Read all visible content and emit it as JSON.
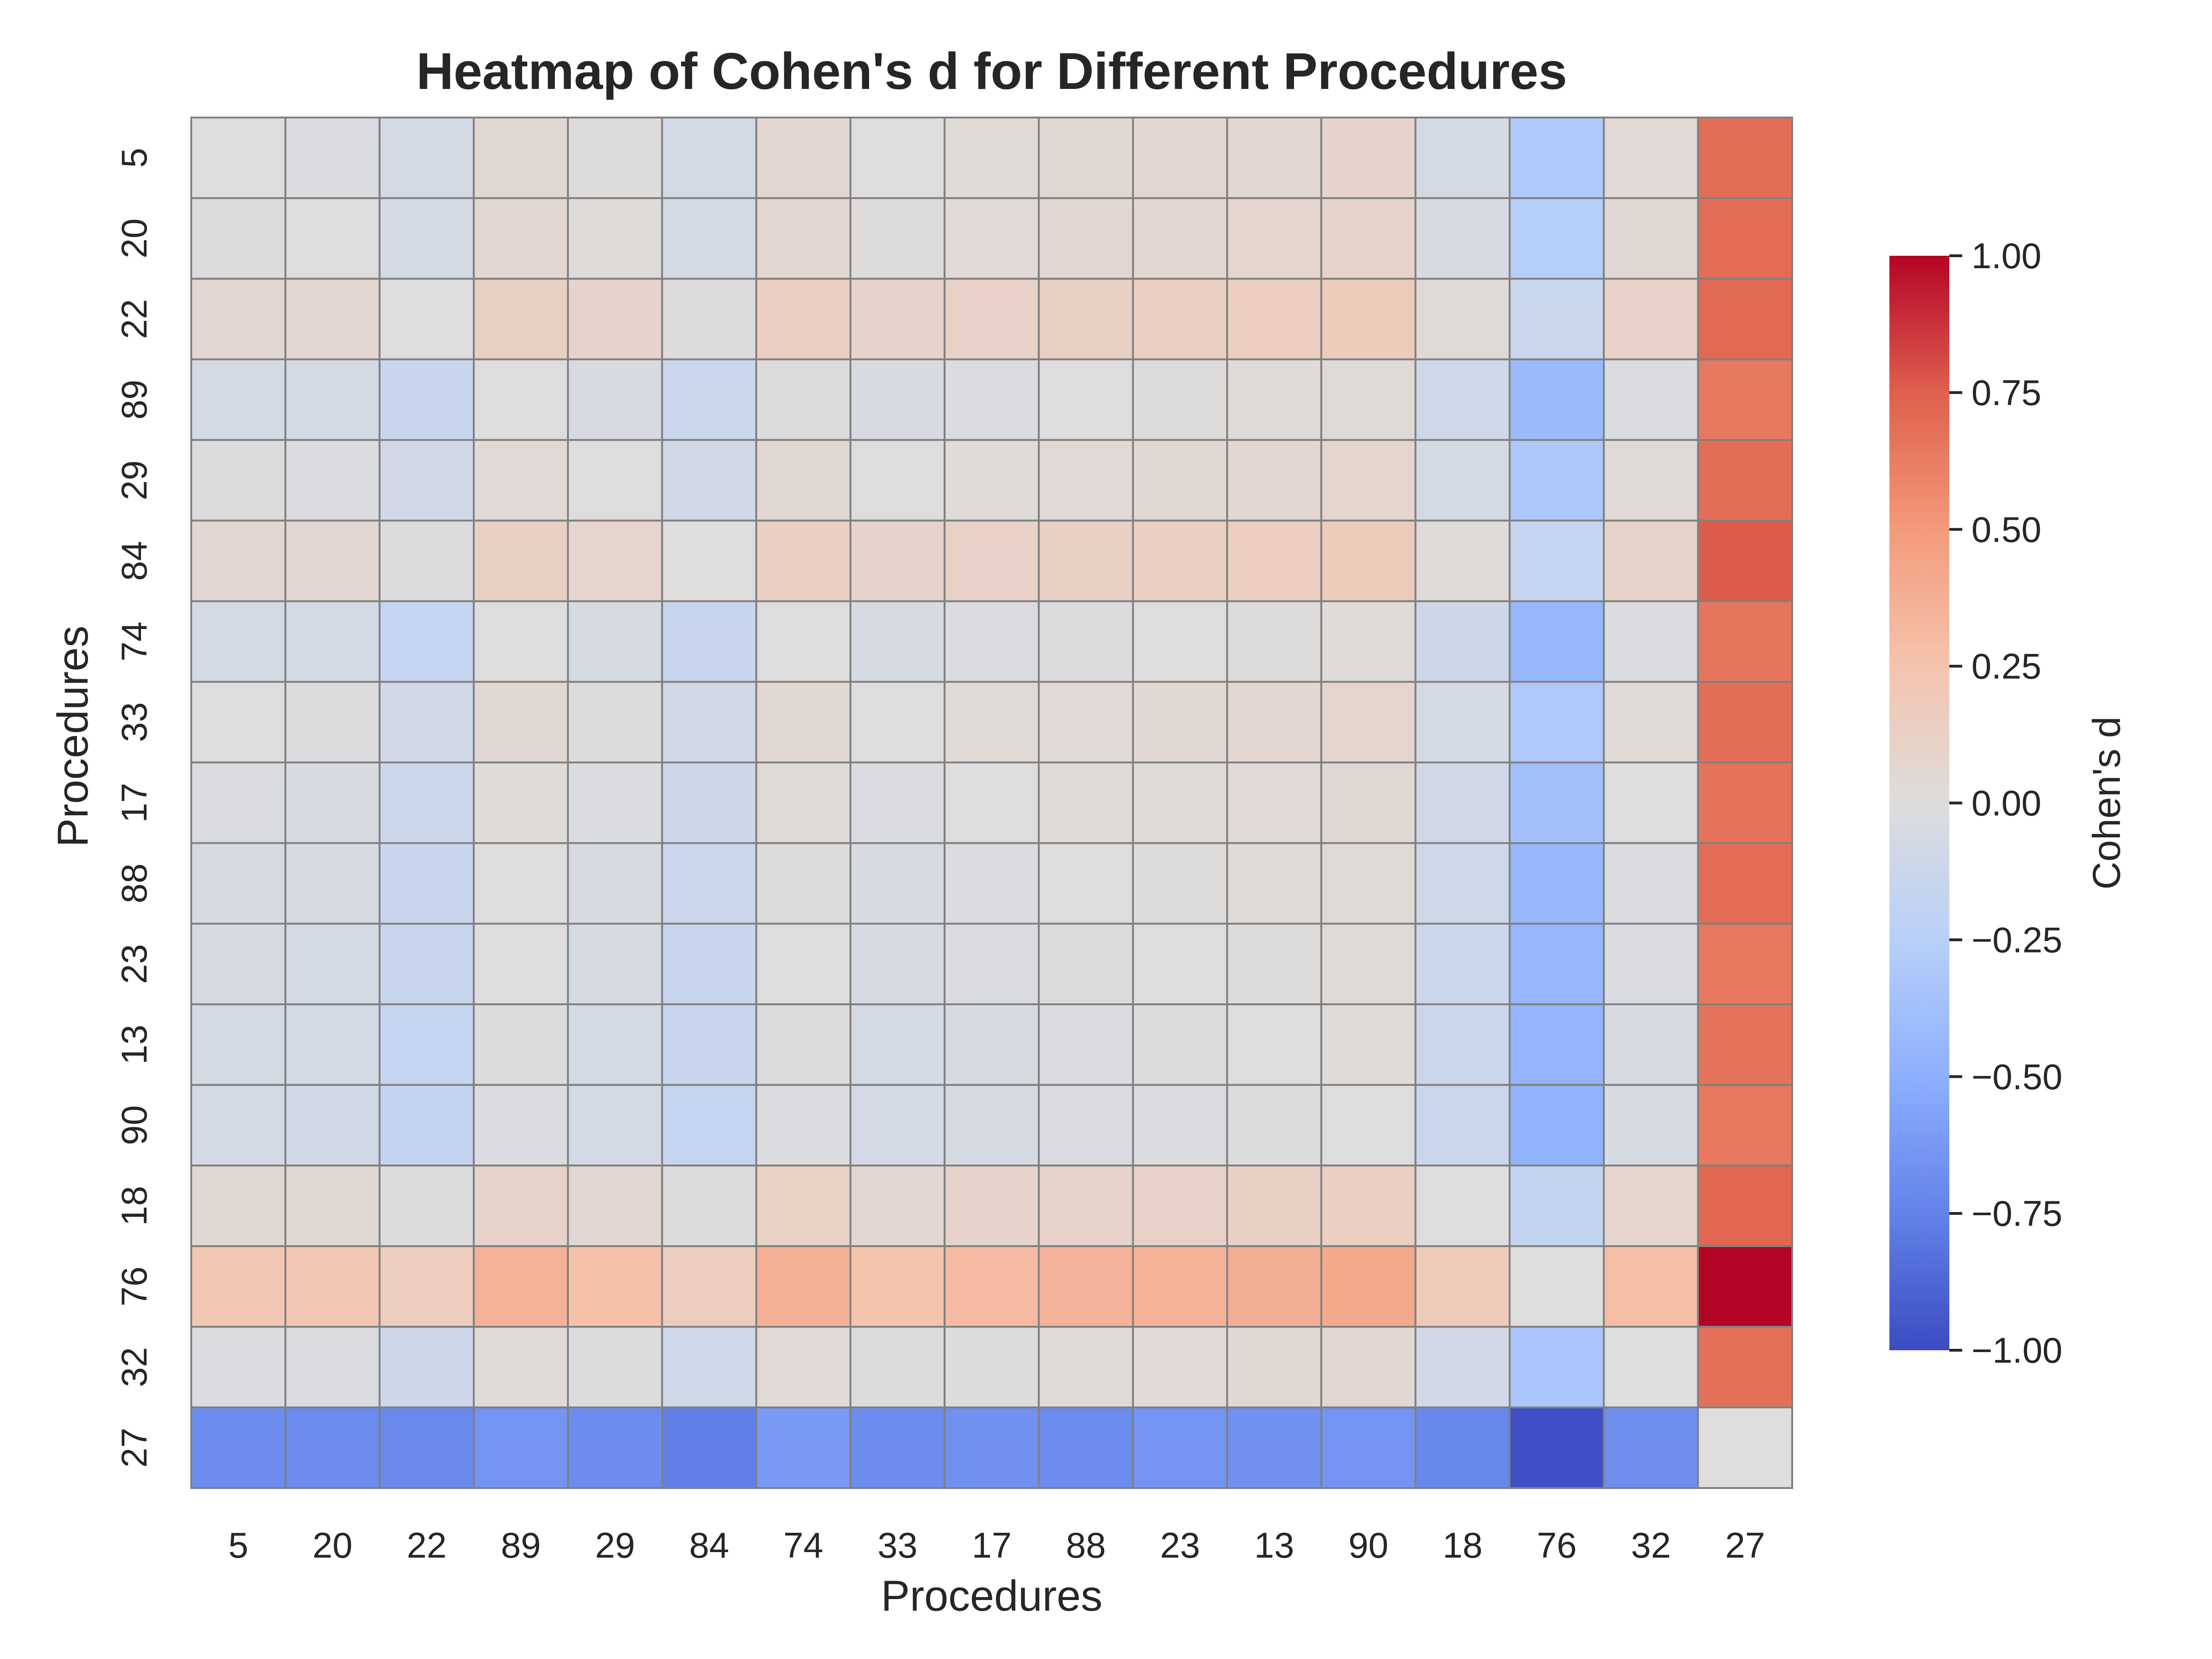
{
  "chart_data": {
    "type": "heatmap",
    "title": "Heatmap of Cohen's d for Different Procedures",
    "xlabel": "Procedures",
    "ylabel": "Procedures",
    "x_categories": [
      "5",
      "20",
      "22",
      "89",
      "29",
      "84",
      "74",
      "33",
      "17",
      "88",
      "23",
      "13",
      "90",
      "18",
      "76",
      "32",
      "27"
    ],
    "y_categories": [
      "5",
      "20",
      "22",
      "89",
      "29",
      "84",
      "74",
      "33",
      "17",
      "88",
      "23",
      "13",
      "90",
      "18",
      "76",
      "32",
      "27"
    ],
    "values": [
      [
        0.0,
        -0.02,
        -0.07,
        0.05,
        0.01,
        -0.07,
        0.06,
        0.0,
        0.03,
        0.05,
        0.06,
        0.07,
        0.09,
        -0.06,
        -0.3,
        0.04,
        0.69
      ],
      [
        0.01,
        0.0,
        -0.06,
        0.06,
        0.02,
        -0.06,
        0.07,
        0.01,
        0.04,
        0.06,
        0.07,
        0.08,
        0.1,
        -0.04,
        -0.27,
        0.05,
        0.7
      ],
      [
        0.07,
        0.07,
        0.0,
        0.13,
        0.09,
        0.01,
        0.14,
        0.09,
        0.11,
        0.13,
        0.14,
        0.15,
        0.17,
        0.03,
        -0.13,
        0.11,
        0.71
      ],
      [
        -0.06,
        -0.06,
        -0.14,
        0.0,
        -0.04,
        -0.13,
        0.01,
        -0.04,
        -0.02,
        0.0,
        0.01,
        0.02,
        0.03,
        -0.1,
        -0.42,
        -0.02,
        0.65
      ],
      [
        -0.01,
        -0.02,
        -0.09,
        0.04,
        0.0,
        -0.08,
        0.05,
        0.0,
        0.02,
        0.04,
        0.05,
        0.06,
        0.08,
        -0.06,
        -0.32,
        0.03,
        0.69
      ],
      [
        0.07,
        0.06,
        -0.01,
        0.13,
        0.08,
        0.0,
        0.14,
        0.09,
        0.11,
        0.13,
        0.14,
        0.15,
        0.17,
        0.02,
        -0.16,
        0.1,
        0.76
      ],
      [
        -0.06,
        -0.07,
        -0.16,
        0.0,
        -0.05,
        -0.15,
        0.0,
        -0.05,
        -0.03,
        -0.01,
        0.0,
        0.01,
        0.02,
        -0.11,
        -0.45,
        -0.03,
        0.66
      ],
      [
        0.0,
        -0.01,
        -0.08,
        0.05,
        0.01,
        -0.08,
        0.05,
        0.0,
        0.03,
        0.04,
        0.05,
        0.07,
        0.08,
        -0.06,
        -0.3,
        0.03,
        0.69
      ],
      [
        -0.03,
        -0.04,
        -0.12,
        0.02,
        -0.02,
        -0.11,
        0.03,
        -0.02,
        0.0,
        0.02,
        0.03,
        0.04,
        0.05,
        -0.09,
        -0.38,
        0.0,
        0.67
      ],
      [
        -0.04,
        -0.05,
        -0.14,
        0.0,
        -0.04,
        -0.13,
        0.01,
        -0.04,
        -0.02,
        0.0,
        0.01,
        0.02,
        0.03,
        -0.1,
        -0.44,
        -0.02,
        0.7
      ],
      [
        -0.05,
        -0.06,
        -0.15,
        0.0,
        -0.05,
        -0.14,
        0.0,
        -0.05,
        -0.03,
        -0.01,
        0.0,
        0.01,
        0.03,
        -0.12,
        -0.45,
        -0.03,
        0.65
      ],
      [
        -0.06,
        -0.07,
        -0.16,
        -0.01,
        -0.06,
        -0.15,
        -0.01,
        -0.06,
        -0.04,
        -0.02,
        -0.01,
        0.0,
        0.02,
        -0.13,
        -0.46,
        -0.04,
        0.67
      ],
      [
        -0.07,
        -0.08,
        -0.17,
        -0.02,
        -0.07,
        -0.16,
        -0.02,
        -0.07,
        -0.05,
        -0.03,
        -0.02,
        -0.01,
        0.0,
        -0.13,
        -0.48,
        -0.05,
        0.65
      ],
      [
        0.05,
        0.05,
        -0.01,
        0.1,
        0.06,
        -0.01,
        0.12,
        0.06,
        0.09,
        0.1,
        0.11,
        0.13,
        0.14,
        0.0,
        -0.18,
        0.08,
        0.72
      ],
      [
        0.22,
        0.23,
        0.16,
        0.36,
        0.27,
        0.15,
        0.37,
        0.25,
        0.31,
        0.35,
        0.36,
        0.38,
        0.41,
        0.18,
        0.0,
        0.29,
        1.0
      ],
      [
        -0.02,
        -0.03,
        -0.11,
        0.03,
        -0.01,
        -0.1,
        0.04,
        -0.01,
        0.01,
        0.03,
        0.04,
        0.05,
        0.06,
        -0.08,
        -0.33,
        0.0,
        0.68
      ],
      [
        -0.69,
        -0.7,
        -0.71,
        -0.65,
        -0.69,
        -0.76,
        -0.62,
        -0.69,
        -0.67,
        -0.7,
        -0.65,
        -0.67,
        -0.65,
        -0.72,
        -0.98,
        -0.68,
        0.0
      ]
    ],
    "vmin": -1.0,
    "vmax": 1.0,
    "colormap": "coolwarm",
    "cell_border_color": "#808080",
    "colorbar": {
      "label": "Cohen's d",
      "ticks": [
        "1.00",
        "0.75",
        "0.50",
        "0.25",
        "0.00",
        "−0.25",
        "−0.50",
        "−0.75",
        "−1.00"
      ],
      "tick_values": [
        1.0,
        0.75,
        0.5,
        0.25,
        0.0,
        -0.25,
        -0.5,
        -0.75,
        -1.0
      ]
    },
    "grid": false,
    "legend": "colorbar-right"
  }
}
